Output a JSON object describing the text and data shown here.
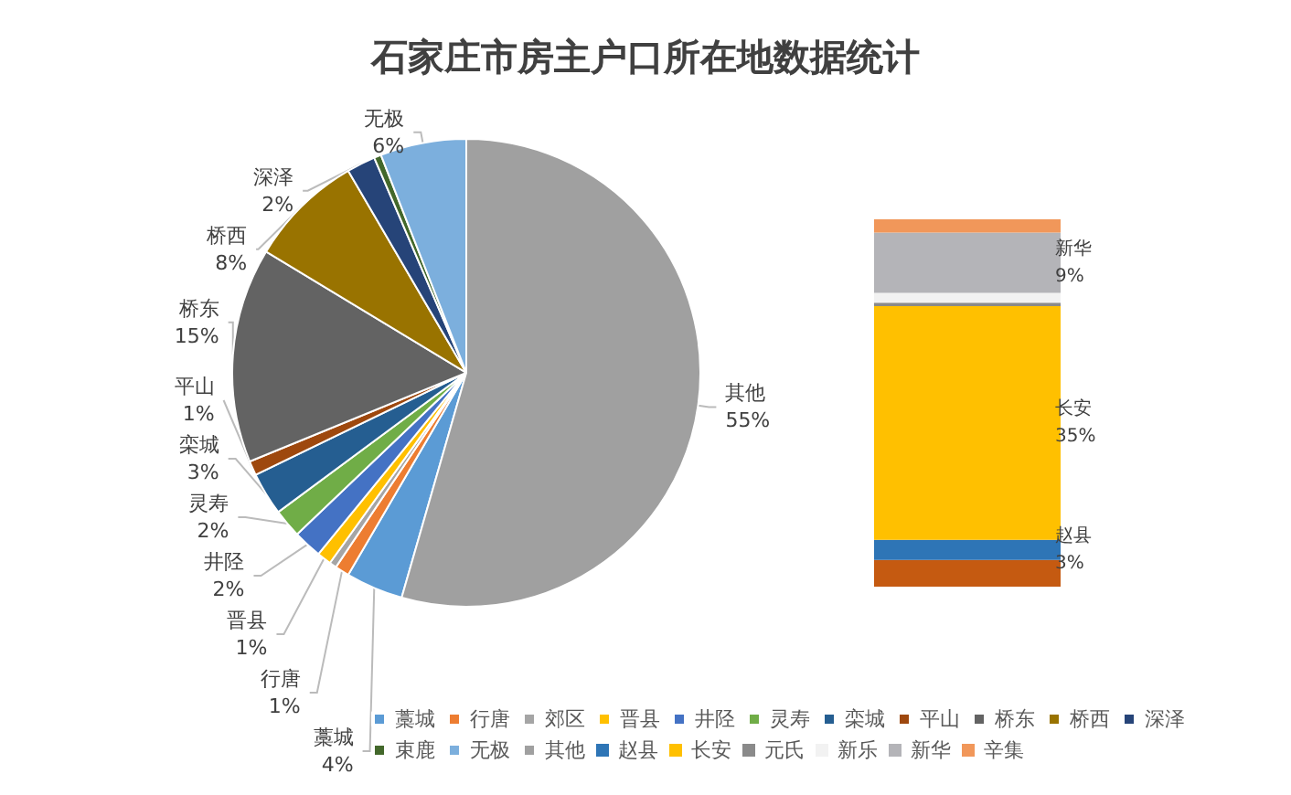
{
  "chart_data": [
    {
      "type": "pie",
      "title": "石家庄市房主户口所在地数据统计",
      "categories": [
        "藁城",
        "行唐",
        "郊区",
        "晋县",
        "井陉",
        "灵寿",
        "栾城",
        "平山",
        "桥东",
        "桥西",
        "深泽",
        "束鹿",
        "无极",
        "其他"
      ],
      "values": [
        4,
        1,
        0.5,
        1,
        2,
        2,
        3,
        1,
        15,
        8,
        2,
        0.5,
        6,
        55
      ],
      "value_labels": [
        "4%",
        "1%",
        null,
        "1%",
        "2%",
        "2%",
        "3%",
        "1%",
        "15%",
        "8%",
        "2%",
        null,
        "6%",
        "55%"
      ],
      "colors": [
        "#5b9bd5",
        "#ed7d31",
        "#a5a5a5",
        "#ffc000",
        "#4472c4",
        "#70ad47",
        "#255e91",
        "#9e480e",
        "#636363",
        "#997300",
        "#264478",
        "#43682b",
        "#7cafdd",
        "#a0a0a0"
      ],
      "legend": "bottom"
    },
    {
      "type": "bar",
      "stacked": true,
      "categories": [
        null
      ],
      "legend": "bottom",
      "series": [
        {
          "color": "#c55a11",
          "values": [
            4
          ]
        },
        {
          "name": "赵县",
          "color": "#2e75b6",
          "values": [
            3
          ],
          "value_labels": [
            "3%"
          ]
        },
        {
          "name": "长安",
          "color": "#ffc000",
          "values": [
            35
          ],
          "value_labels": [
            "35%"
          ]
        },
        {
          "name": "元氏",
          "color": "#8a8a8a",
          "values": [
            0.5
          ],
          "value_labels": [
            null
          ]
        },
        {
          "name": "新乐",
          "color": "#f2f2f2",
          "values": [
            1.5
          ],
          "value_labels": [
            null
          ]
        },
        {
          "name": "新华",
          "color": "#b4b4b8",
          "values": [
            9
          ],
          "value_labels": [
            "9%"
          ]
        },
        {
          "name": "辛集",
          "color": "#f1975a",
          "values": [
            2
          ],
          "value_labels": [
            null
          ]
        }
      ]
    }
  ]
}
